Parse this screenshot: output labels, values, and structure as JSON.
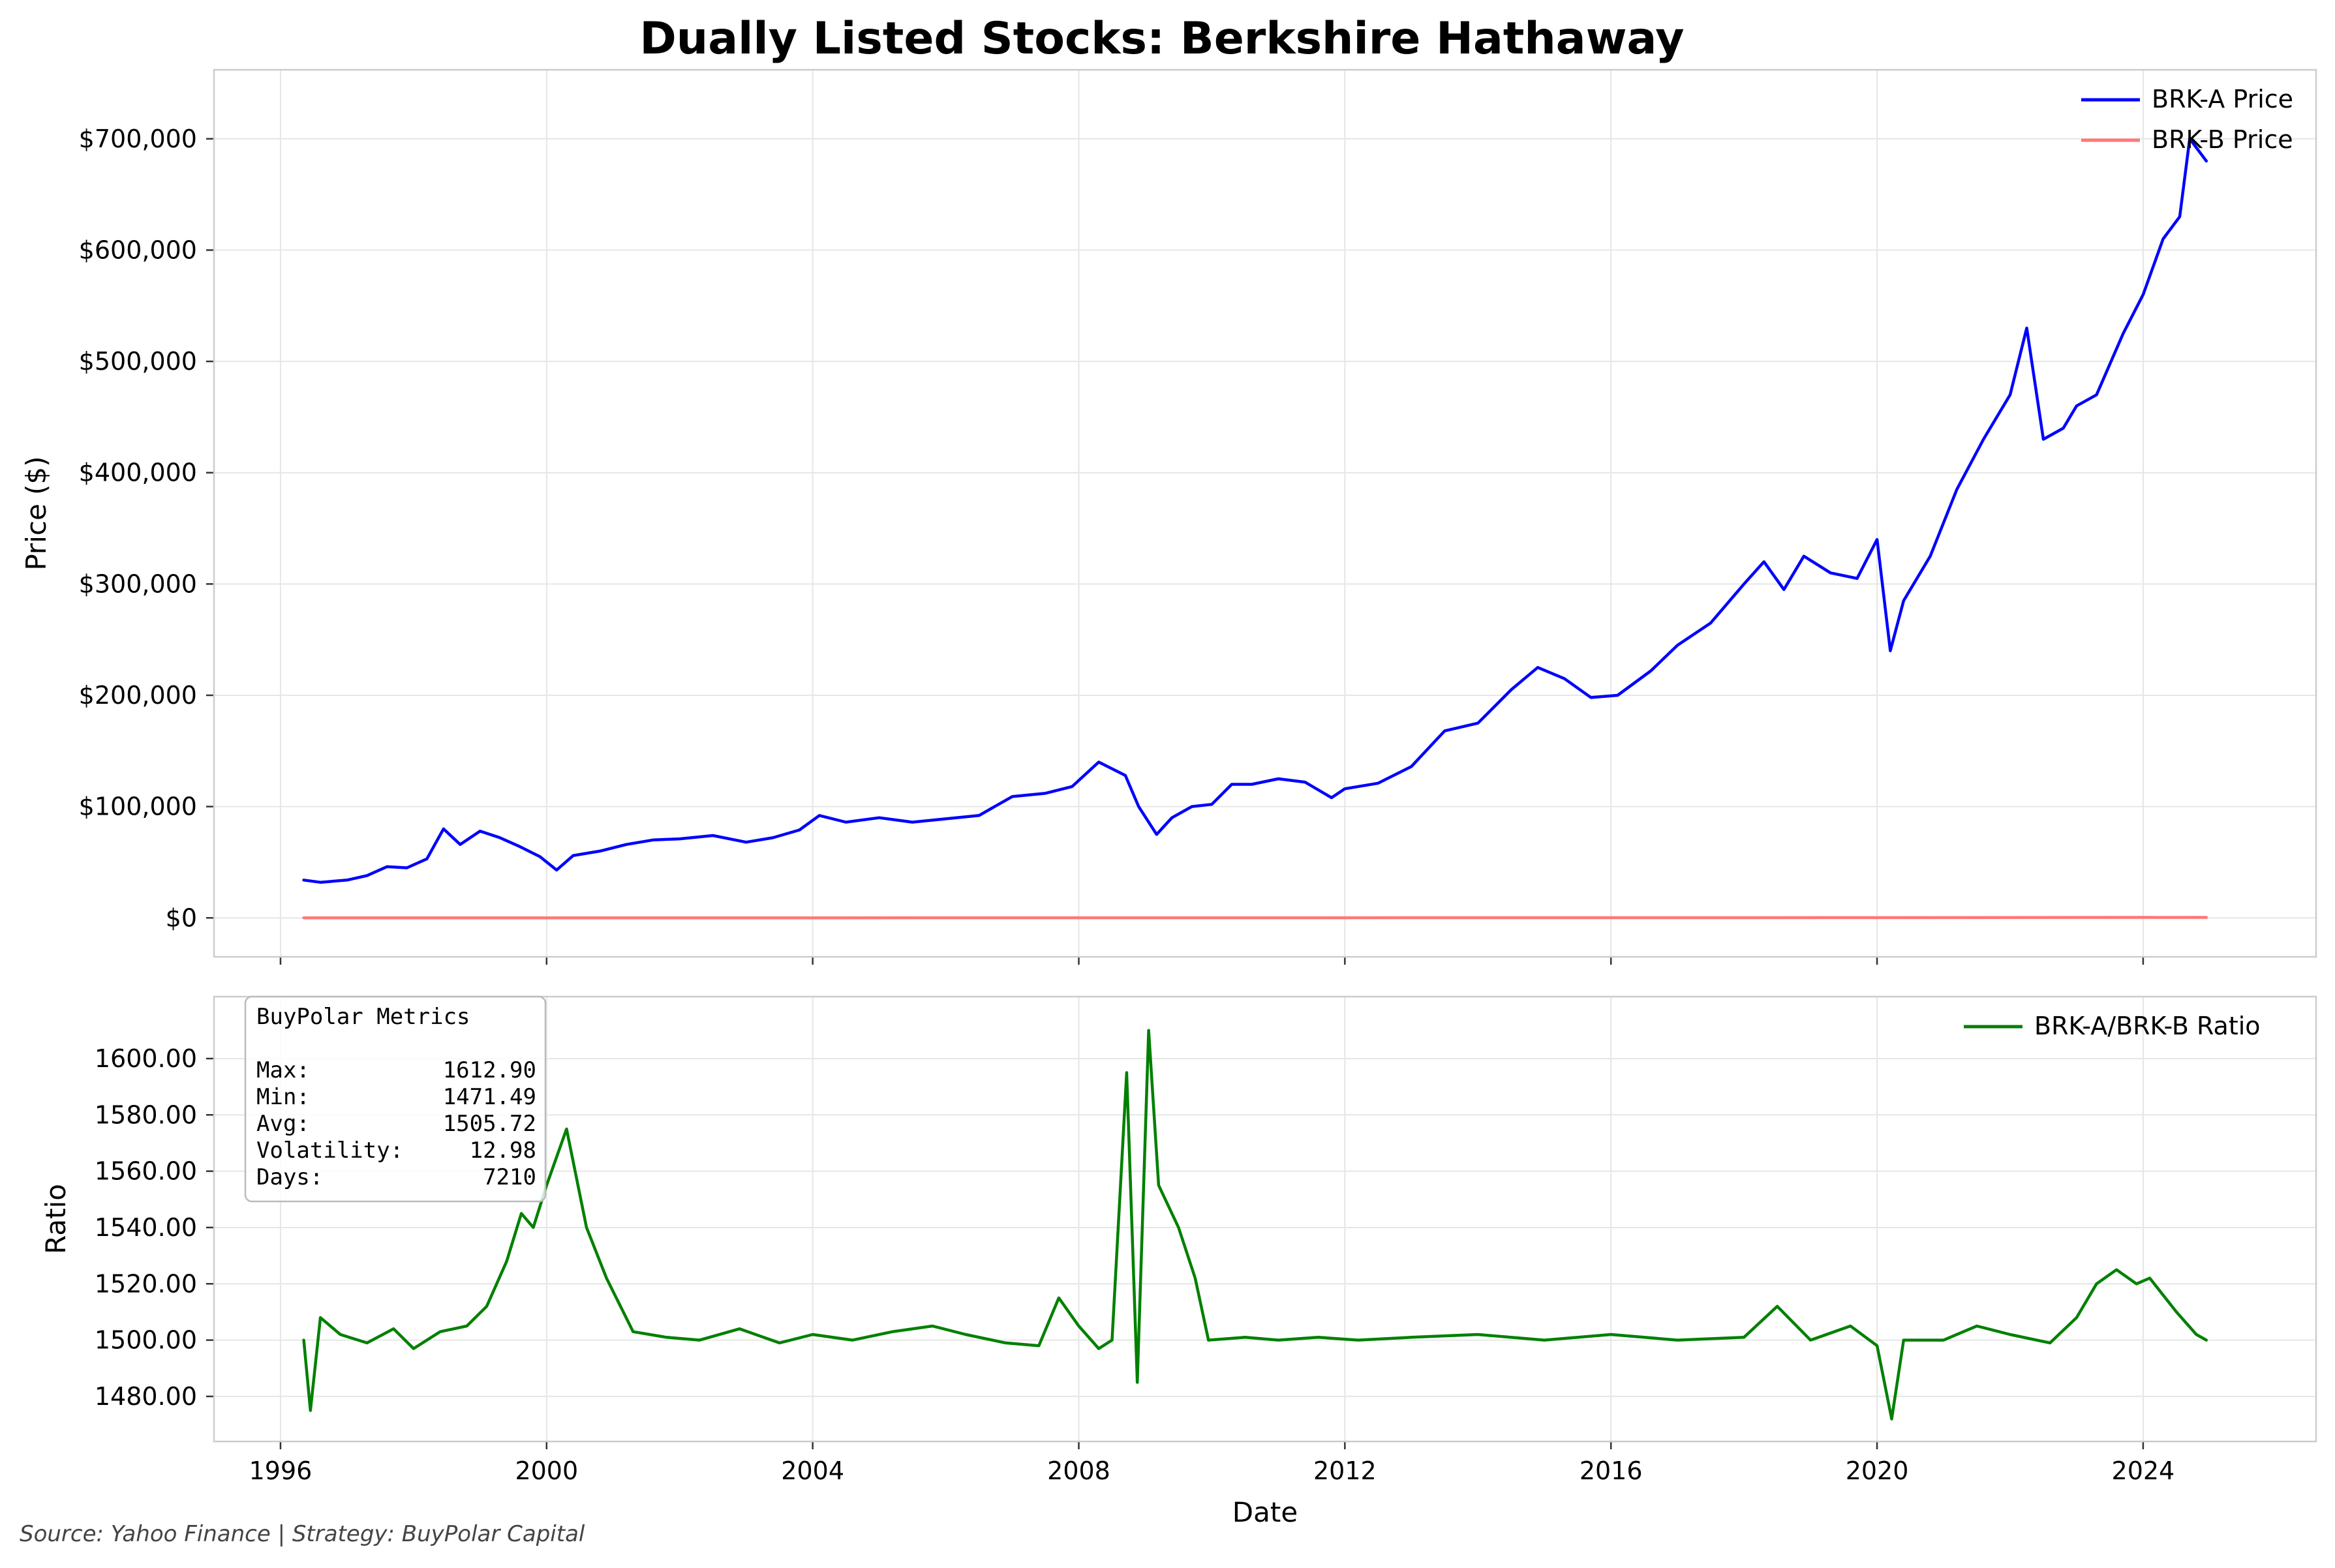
{
  "chart_data": [
    {
      "type": "line",
      "title": "Dually Listed Stocks: Berkshire Hathaway",
      "xlabel": "",
      "ylabel": "Price ($)",
      "xlim": [
        1995.0,
        2026.6
      ],
      "ylim": [
        -35000,
        762000
      ],
      "yticks": [
        0,
        100000,
        200000,
        300000,
        400000,
        500000,
        600000,
        700000
      ],
      "ytick_labels": [
        "$0",
        "$100,000",
        "$200,000",
        "$300,000",
        "$400,000",
        "$500,000",
        "$600,000",
        "$700,000"
      ],
      "grid": true,
      "legend_position": "top-right",
      "series": [
        {
          "name": "BRK-A Price",
          "color": "#0000ff",
          "x": [
            1996.35,
            1996.6,
            1997.0,
            1997.3,
            1997.6,
            1997.9,
            1998.2,
            1998.45,
            1998.7,
            1999.0,
            1999.3,
            1999.6,
            1999.9,
            2000.15,
            2000.4,
            2000.8,
            2001.2,
            2001.6,
            2002.0,
            2002.5,
            2003.0,
            2003.4,
            2003.8,
            2004.1,
            2004.5,
            2005.0,
            2005.5,
            2006.0,
            2006.5,
            2007.0,
            2007.5,
            2007.9,
            2008.3,
            2008.7,
            2008.9,
            2009.17,
            2009.4,
            2009.7,
            2010.0,
            2010.3,
            2010.6,
            2011.0,
            2011.4,
            2011.8,
            2012.0,
            2012.5,
            2013.0,
            2013.5,
            2014.0,
            2014.5,
            2014.9,
            2015.3,
            2015.7,
            2016.1,
            2016.6,
            2017.0,
            2017.5,
            2018.0,
            2018.3,
            2018.6,
            2018.9,
            2019.3,
            2019.7,
            2020.0,
            2020.2,
            2020.4,
            2020.8,
            2021.2,
            2021.6,
            2022.0,
            2022.25,
            2022.5,
            2022.8,
            2023.0,
            2023.3,
            2023.7,
            2024.0,
            2024.3,
            2024.55,
            2024.7,
            2024.95
          ],
          "y": [
            34000,
            32000,
            34000,
            38000,
            46000,
            45000,
            53000,
            80000,
            66000,
            78000,
            72000,
            64000,
            55000,
            43000,
            56000,
            60000,
            66000,
            70000,
            71000,
            74000,
            68000,
            72000,
            79000,
            92000,
            86000,
            90000,
            86000,
            89000,
            92000,
            109000,
            112000,
            118000,
            140000,
            128000,
            100000,
            75000,
            90000,
            100000,
            102000,
            120000,
            120000,
            125000,
            122000,
            108000,
            116000,
            121000,
            136000,
            168000,
            175000,
            205000,
            225000,
            215000,
            198000,
            200000,
            222000,
            245000,
            265000,
            300000,
            320000,
            295000,
            325000,
            310000,
            305000,
            340000,
            240000,
            285000,
            325000,
            385000,
            430000,
            470000,
            530000,
            430000,
            440000,
            460000,
            470000,
            525000,
            560000,
            610000,
            630000,
            700000,
            680000
          ]
        },
        {
          "name": "BRK-B Price",
          "color": "#ff7777",
          "x": [
            1996.35,
            2004.0,
            2010.2,
            2016.0,
            2020.0,
            2024.95
          ],
          "y": [
            22,
            60,
            78,
            140,
            220,
            450
          ]
        }
      ]
    },
    {
      "type": "line",
      "title": "",
      "xlabel": "Date",
      "ylabel": "Ratio",
      "xlim": [
        1995.0,
        2026.6
      ],
      "ylim": [
        1464,
        1622
      ],
      "xticks": [
        1996,
        2000,
        2004,
        2008,
        2012,
        2016,
        2020,
        2024
      ],
      "xtick_labels": [
        "1996",
        "2000",
        "2004",
        "2008",
        "2012",
        "2016",
        "2020",
        "2024"
      ],
      "yticks": [
        1480,
        1500,
        1520,
        1540,
        1560,
        1580,
        1600
      ],
      "ytick_labels": [
        "1480.00",
        "1500.00",
        "1520.00",
        "1540.00",
        "1560.00",
        "1580.00",
        "1600.00"
      ],
      "grid": true,
      "legend_position": "top-right",
      "series": [
        {
          "name": "BRK-A/BRK-B Ratio",
          "color": "#008000",
          "x": [
            1996.35,
            1996.45,
            1996.6,
            1996.9,
            1997.3,
            1997.7,
            1998.0,
            1998.4,
            1998.8,
            1999.1,
            1999.4,
            1999.62,
            1999.8,
            2000.0,
            2000.3,
            2000.6,
            2000.9,
            2001.3,
            2001.8,
            2002.3,
            2002.9,
            2003.5,
            2004.0,
            2004.6,
            2005.2,
            2005.8,
            2006.3,
            2006.9,
            2007.4,
            2007.7,
            2008.0,
            2008.3,
            2008.5,
            2008.72,
            2008.88,
            2009.05,
            2009.2,
            2009.5,
            2009.75,
            2009.95,
            2010.5,
            2011.0,
            2011.6,
            2012.2,
            2013.0,
            2014.0,
            2015.0,
            2016.0,
            2017.0,
            2018.0,
            2018.5,
            2019.0,
            2019.6,
            2020.0,
            2020.22,
            2020.4,
            2021.0,
            2021.5,
            2022.0,
            2022.6,
            2023.0,
            2023.3,
            2023.6,
            2023.9,
            2024.1,
            2024.5,
            2024.8,
            2024.95
          ],
          "y": [
            1500,
            1475,
            1508,
            1502,
            1499,
            1504,
            1497,
            1503,
            1505,
            1512,
            1528,
            1545,
            1540,
            1555,
            1575,
            1540,
            1522,
            1503,
            1501,
            1500,
            1504,
            1499,
            1502,
            1500,
            1503,
            1505,
            1502,
            1499,
            1498,
            1515,
            1505,
            1497,
            1500,
            1595,
            1485,
            1610,
            1555,
            1540,
            1522,
            1500,
            1501,
            1500,
            1501,
            1500,
            1501,
            1502,
            1500,
            1502,
            1500,
            1501,
            1512,
            1500,
            1505,
            1498,
            1472,
            1500,
            1500,
            1505,
            1502,
            1499,
            1508,
            1520,
            1525,
            1520,
            1522,
            1510,
            1502,
            1500
          ]
        }
      ]
    }
  ],
  "metrics_box": {
    "heading": "BuyPolar Metrics",
    "rows": [
      {
        "label": "Max:",
        "value": "1612.90"
      },
      {
        "label": "Min:",
        "value": "1471.49"
      },
      {
        "label": "Avg:",
        "value": "1505.72"
      },
      {
        "label": "Volatility:",
        "value": "12.98"
      },
      {
        "label": "Days:",
        "value": "7210"
      }
    ]
  },
  "footer": {
    "source": "Source: Yahoo Finance | Strategy: BuyPolar Capital"
  }
}
